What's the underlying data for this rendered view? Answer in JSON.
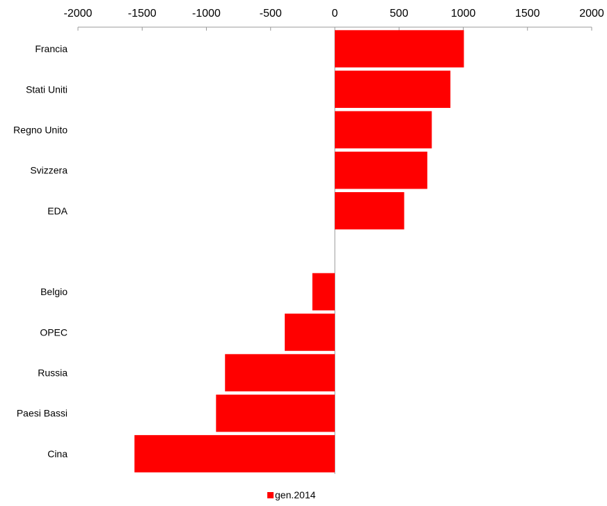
{
  "chart_data": {
    "type": "bar",
    "orientation": "horizontal",
    "categories": [
      "Francia",
      "Stati Uniti",
      "Regno Unito",
      "Svizzera",
      "EDA",
      "",
      "Belgio",
      "OPEC",
      "Russia",
      "Paesi Bassi",
      "Cina"
    ],
    "series": [
      {
        "name": "gen.2014",
        "color": "#ff0000",
        "values": [
          1005,
          900,
          755,
          720,
          540,
          null,
          -175,
          -390,
          -855,
          -925,
          -1560
        ]
      }
    ],
    "xlim": [
      -2000,
      2000
    ],
    "xticks": [
      -2000,
      -1500,
      -1000,
      -500,
      0,
      500,
      1000,
      1500,
      2000
    ],
    "x_axis_position": "top",
    "grid": false,
    "legend_position": "bottom-center",
    "title": "",
    "xlabel": "",
    "ylabel": ""
  }
}
